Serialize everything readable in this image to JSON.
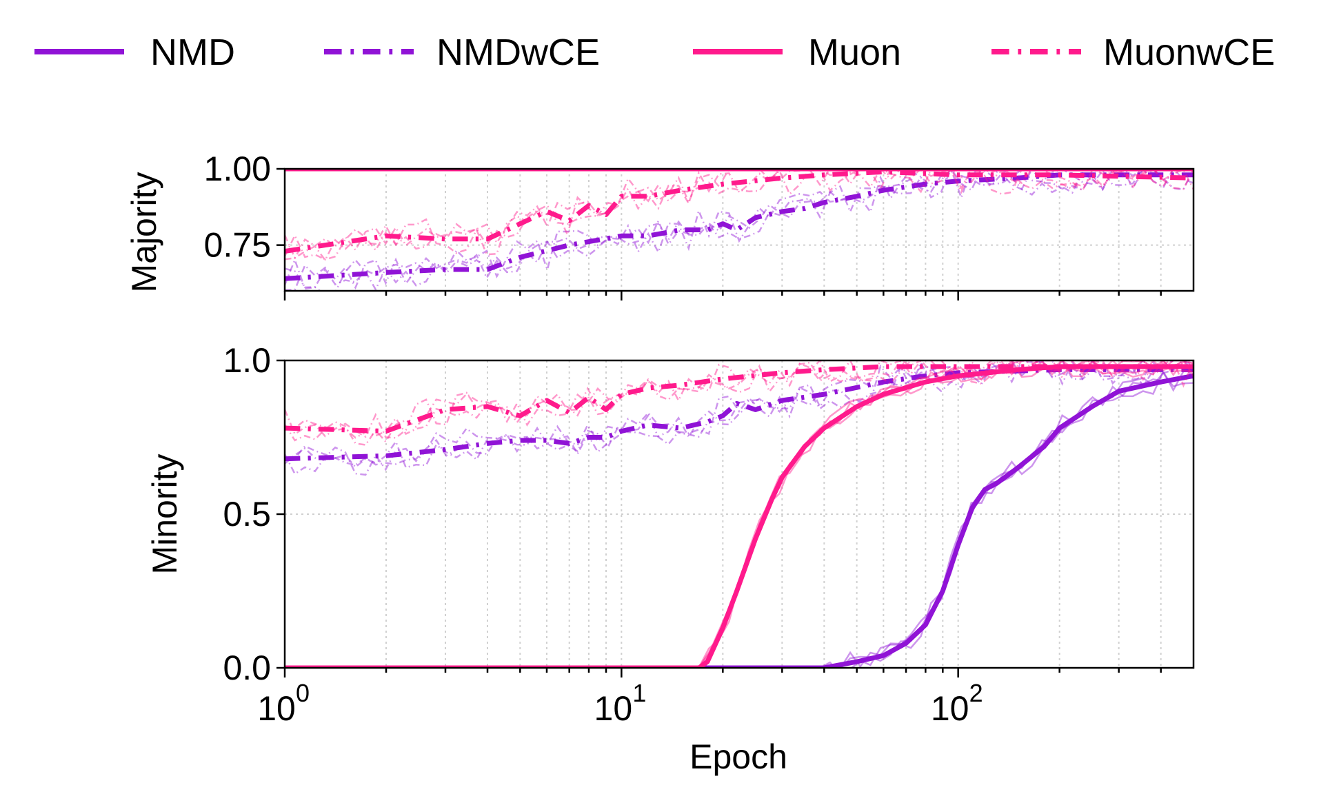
{
  "chart_data": {
    "type": "line",
    "xscale": "log",
    "xlabel": "Epoch",
    "xlim": [
      1,
      500
    ],
    "x_ticks": [
      {
        "value": 1,
        "base": "10",
        "exp": "0"
      },
      {
        "value": 10,
        "base": "10",
        "exp": "1"
      },
      {
        "value": 100,
        "base": "10",
        "exp": "2"
      }
    ],
    "colors": {
      "NMD": "#9013d6",
      "Muon": "#ff1a8c"
    },
    "legend": [
      {
        "name": "NMD",
        "color": "#9013d6",
        "style": "solid"
      },
      {
        "name": "NMDwCE",
        "color": "#9013d6",
        "style": "dashdot"
      },
      {
        "name": "Muon",
        "color": "#ff1a8c",
        "style": "solid"
      },
      {
        "name": "MuonwCE",
        "color": "#ff1a8c",
        "style": "dashdot"
      }
    ],
    "panels": [
      {
        "ylabel": "Majority",
        "ylim": [
          0.6,
          1.0
        ],
        "y_ticks": [
          "0.75",
          "1.00"
        ],
        "y_tick_values": [
          0.75,
          1.0
        ],
        "series": [
          {
            "name": "NMD",
            "x": [
              1,
              500
            ],
            "y": [
              1.0,
              1.0
            ]
          },
          {
            "name": "NMDwCE",
            "x": [
              1,
              2,
              3,
              4,
              5,
              7,
              10,
              12,
              15,
              18,
              20,
              22,
              25,
              30,
              35,
              40,
              50,
              60,
              80,
              100,
              150,
              200,
              300,
              500
            ],
            "y": [
              0.64,
              0.66,
              0.67,
              0.67,
              0.71,
              0.75,
              0.78,
              0.78,
              0.8,
              0.8,
              0.82,
              0.8,
              0.84,
              0.86,
              0.87,
              0.89,
              0.91,
              0.93,
              0.95,
              0.96,
              0.97,
              0.98,
              0.98,
              0.98
            ]
          },
          {
            "name": "Muon",
            "x": [
              1,
              500
            ],
            "y": [
              1.0,
              1.0
            ]
          },
          {
            "name": "MuonwCE",
            "x": [
              1,
              2,
              3,
              4,
              5,
              6,
              7,
              8,
              9,
              10,
              12,
              15,
              20,
              30,
              40,
              60,
              100,
              200,
              500
            ],
            "y": [
              0.73,
              0.78,
              0.77,
              0.77,
              0.82,
              0.86,
              0.83,
              0.88,
              0.85,
              0.91,
              0.91,
              0.93,
              0.95,
              0.97,
              0.98,
              0.99,
              0.98,
              0.98,
              0.97
            ]
          }
        ]
      },
      {
        "ylabel": "Minority",
        "ylim": [
          0.0,
          1.0
        ],
        "y_ticks": [
          "0.0",
          "0.5",
          "1.0"
        ],
        "y_tick_values": [
          0.0,
          0.5,
          1.0
        ],
        "series": [
          {
            "name": "NMD",
            "x": [
              1,
              40,
              50,
              60,
              70,
              80,
              90,
              100,
              110,
              120,
              130,
              150,
              180,
              200,
              250,
              300,
              400,
              500
            ],
            "y": [
              0.0,
              0.0,
              0.02,
              0.04,
              0.08,
              0.14,
              0.25,
              0.4,
              0.52,
              0.58,
              0.6,
              0.65,
              0.72,
              0.78,
              0.85,
              0.9,
              0.93,
              0.95
            ]
          },
          {
            "name": "NMDwCE",
            "x": [
              1,
              2,
              3,
              4,
              5,
              6,
              7,
              8,
              9,
              10,
              12,
              15,
              18,
              20,
              22,
              25,
              30,
              40,
              60,
              80,
              100,
              200,
              500
            ],
            "y": [
              0.68,
              0.69,
              0.71,
              0.73,
              0.74,
              0.74,
              0.73,
              0.75,
              0.75,
              0.77,
              0.79,
              0.78,
              0.8,
              0.82,
              0.86,
              0.84,
              0.87,
              0.89,
              0.93,
              0.95,
              0.96,
              0.97,
              0.97
            ]
          },
          {
            "name": "Muon",
            "x": [
              1,
              17,
              18,
              20,
              22,
              25,
              28,
              30,
              35,
              40,
              50,
              60,
              80,
              100,
              150,
              200,
              500
            ],
            "y": [
              0.0,
              0.0,
              0.02,
              0.13,
              0.25,
              0.42,
              0.55,
              0.62,
              0.72,
              0.78,
              0.85,
              0.89,
              0.93,
              0.95,
              0.97,
              0.98,
              0.98
            ]
          },
          {
            "name": "MuonwCE",
            "x": [
              1,
              2,
              3,
              4,
              5,
              6,
              7,
              8,
              9,
              10,
              12,
              15,
              20,
              30,
              40,
              60,
              100,
              200,
              500
            ],
            "y": [
              0.78,
              0.77,
              0.84,
              0.85,
              0.82,
              0.87,
              0.83,
              0.88,
              0.84,
              0.89,
              0.91,
              0.92,
              0.94,
              0.96,
              0.97,
              0.98,
              0.98,
              0.98,
              0.98
            ]
          }
        ]
      }
    ]
  }
}
